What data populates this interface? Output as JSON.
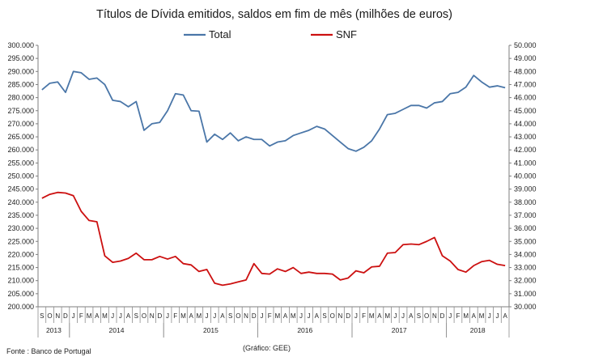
{
  "chart_data": {
    "type": "line",
    "title": "Títulos de Dívida emitidos, saldos em fim de mês  (milhões de euros)",
    "legend_position": "top",
    "months": [
      "S",
      "O",
      "N",
      "D",
      "J",
      "F",
      "M",
      "A",
      "M",
      "J",
      "J",
      "A",
      "S",
      "O",
      "N",
      "D",
      "J",
      "F",
      "M",
      "A",
      "M",
      "J",
      "J",
      "A",
      "S",
      "O",
      "N",
      "D",
      "J",
      "F",
      "M",
      "A",
      "M",
      "J",
      "J",
      "A",
      "S",
      "O",
      "N",
      "D",
      "J",
      "F",
      "M",
      "A",
      "M",
      "J",
      "J",
      "A",
      "S",
      "O",
      "N",
      "D",
      "J",
      "F",
      "M",
      "A",
      "M",
      "J",
      "J",
      "A"
    ],
    "years": [
      {
        "label": "2013",
        "start": 0,
        "count": 4
      },
      {
        "label": "2014",
        "start": 4,
        "count": 12
      },
      {
        "label": "2015",
        "start": 16,
        "count": 12
      },
      {
        "label": "2016",
        "start": 28,
        "count": 12
      },
      {
        "label": "2017",
        "start": 40,
        "count": 12
      },
      {
        "label": "2018",
        "start": 52,
        "count": 8
      }
    ],
    "y_left": {
      "min": 200000,
      "max": 300000,
      "step": 5000,
      "ticks": [
        "200.000",
        "205.000",
        "210.000",
        "215.000",
        "220.000",
        "225.000",
        "230.000",
        "235.000",
        "240.000",
        "245.000",
        "250.000",
        "255.000",
        "260.000",
        "265.000",
        "270.000",
        "275.000",
        "280.000",
        "285.000",
        "290.000",
        "295.000",
        "300.000"
      ]
    },
    "y_right": {
      "min": 30000,
      "max": 50000,
      "step": 1000,
      "ticks": [
        "30.000",
        "31.000",
        "32.000",
        "33.000",
        "34.000",
        "35.000",
        "36.000",
        "37.000",
        "38.000",
        "39.000",
        "40.000",
        "41.000",
        "42.000",
        "43.000",
        "44.000",
        "45.000",
        "46.000",
        "47.000",
        "48.000",
        "49.000",
        "50.000"
      ]
    },
    "series": [
      {
        "name": "Total",
        "axis": "left",
        "color": "#4a76a8",
        "values": [
          283000,
          285500,
          286000,
          282000,
          290000,
          289500,
          287000,
          287500,
          285000,
          279000,
          278500,
          276500,
          278500,
          267500,
          270000,
          270500,
          275000,
          281500,
          281000,
          275000,
          274800,
          263000,
          266000,
          264000,
          266500,
          263500,
          265000,
          264000,
          264000,
          261500,
          263000,
          263500,
          265500,
          266500,
          267500,
          269000,
          268000,
          265500,
          263000,
          260500,
          259500,
          261000,
          263500,
          268000,
          273500,
          274000,
          275500,
          277000,
          277000,
          276000,
          278000,
          278500,
          281500,
          282000,
          284000,
          288500,
          286000,
          284000,
          284500,
          283800
        ]
      },
      {
        "name": "SNF",
        "axis": "right",
        "color": "#cc1010",
        "values": [
          38300,
          38600,
          38750,
          38700,
          38500,
          37300,
          36600,
          36500,
          33900,
          33400,
          33500,
          33700,
          34100,
          33600,
          33600,
          33850,
          33650,
          33850,
          33300,
          33200,
          32700,
          32850,
          31800,
          31650,
          31750,
          31900,
          32050,
          33300,
          32550,
          32500,
          32900,
          32700,
          33000,
          32550,
          32650,
          32550,
          32550,
          32500,
          32050,
          32200,
          32750,
          32600,
          33050,
          33100,
          34100,
          34150,
          34750,
          34800,
          34750,
          35000,
          35300,
          33900,
          33500,
          32850,
          32650,
          33150,
          33450,
          33550,
          33250,
          33150
        ]
      }
    ],
    "legend": [
      "Total",
      "SNF"
    ],
    "grid": false
  },
  "notes": {
    "source": "Fonte : Banco de Portugal",
    "credit": "(Gráfico: GEE)"
  }
}
